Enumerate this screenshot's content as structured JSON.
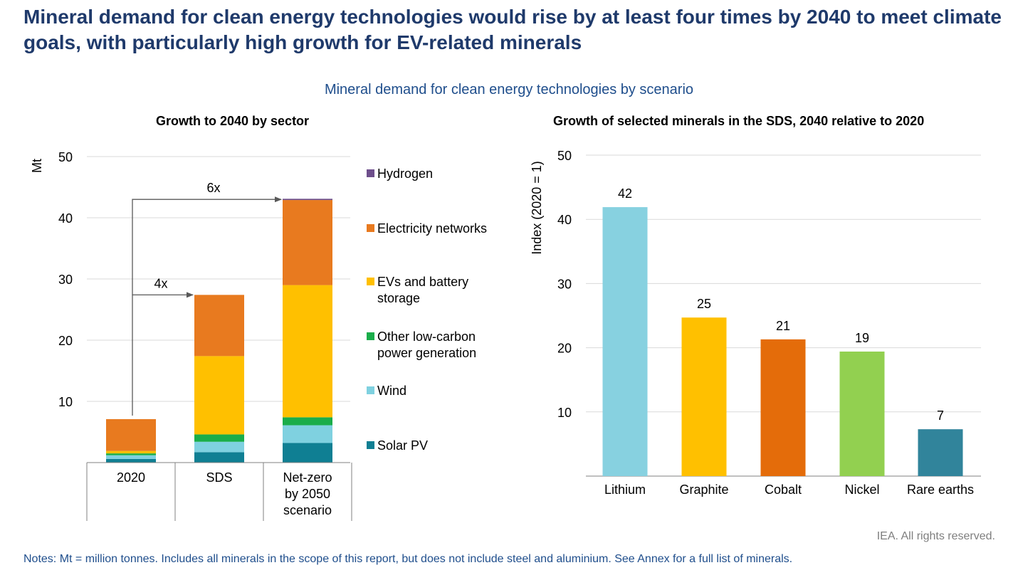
{
  "headline": "Mineral demand for clean energy technologies would rise by at least four times by 2040 to meet climate goals, with particularly high growth for EV-related minerals",
  "subtitle": "Mineral demand for clean energy technologies by scenario",
  "notes": "Notes: Mt = million tonnes. Includes all minerals in the scope of this report, but does not include steel and aluminium. See Annex for a full list of minerals.",
  "credit": "IEA. All rights reserved.",
  "chart_data": [
    {
      "type": "bar",
      "stacked": true,
      "title": "Growth to 2040 by sector",
      "xlabel": "",
      "ylabel": "Mt",
      "ylim": [
        0,
        50
      ],
      "yticks": [
        10,
        20,
        30,
        40,
        50
      ],
      "grid": true,
      "legend_position": "right",
      "categories": [
        "2020",
        "SDS",
        "Net-zero by 2050 scenario"
      ],
      "series": [
        {
          "name": "Solar PV",
          "color": "#0f7f93",
          "values": [
            0.6,
            1.7,
            3.2
          ]
        },
        {
          "name": "Wind",
          "color": "#7fd1e0",
          "values": [
            0.6,
            1.7,
            2.9
          ]
        },
        {
          "name": "Other low-carbon power generation",
          "color": "#1aad4a",
          "values": [
            0.3,
            1.2,
            1.3
          ]
        },
        {
          "name": "EVs and battery storage",
          "color": "#ffc000",
          "values": [
            0.4,
            12.8,
            21.6
          ]
        },
        {
          "name": "Electricity networks",
          "color": "#e87a1f",
          "values": [
            5.2,
            10.0,
            13.9
          ]
        },
        {
          "name": "Hydrogen",
          "color": "#6e4f8c",
          "values": [
            0,
            0,
            0.2
          ]
        }
      ],
      "annotations": [
        {
          "label": "4x",
          "from": "2020",
          "to": "SDS"
        },
        {
          "label": "6x",
          "from": "2020",
          "to": "Net-zero by 2050 scenario"
        }
      ]
    },
    {
      "type": "bar",
      "title": "Growth of selected minerals in the SDS, 2040 relative to 2020",
      "xlabel": "",
      "ylabel": "Index (2020 = 1)",
      "ylim": [
        0,
        50
      ],
      "yticks": [
        10,
        20,
        30,
        40,
        50
      ],
      "grid": true,
      "categories": [
        "Lithium",
        "Graphite",
        "Cobalt",
        "Nickel",
        "Rare earths"
      ],
      "values": [
        42,
        25,
        21,
        19,
        7
      ],
      "plotted_values": [
        41.9,
        24.7,
        21.3,
        19.4,
        7.3
      ],
      "colors": [
        "#87d1e0",
        "#ffc000",
        "#e46c0a",
        "#92d050",
        "#31849b"
      ]
    }
  ]
}
